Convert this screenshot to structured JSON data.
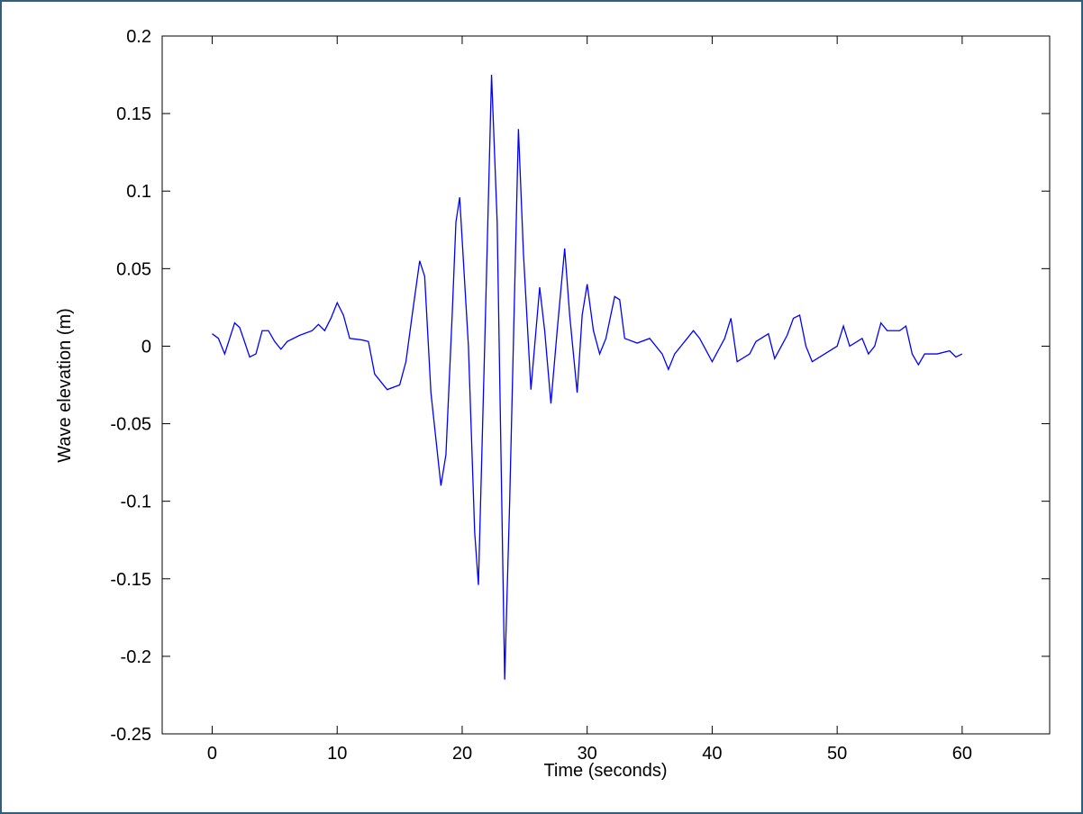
{
  "chart_data": {
    "type": "line",
    "xlabel": "Time (seconds)",
    "ylabel": "Wave elevation (m)",
    "xlim": [
      -4,
      67
    ],
    "ylim": [
      -0.25,
      0.2
    ],
    "xticks": [
      0,
      10,
      20,
      30,
      40,
      50,
      60
    ],
    "yticks": [
      -0.25,
      -0.2,
      -0.15,
      -0.1,
      -0.05,
      0,
      0.05,
      0.1,
      0.15,
      0.2
    ],
    "grid": false,
    "series": [
      {
        "color": "#0000ff",
        "x": [
          0,
          0.5,
          1,
          1.8,
          2.2,
          2.5,
          3,
          3.5,
          4,
          4.5,
          5,
          5.5,
          6,
          7,
          8,
          8.5,
          9,
          9.5,
          10,
          10.5,
          11,
          12,
          12.5,
          13,
          14,
          15,
          15.5,
          16,
          16.6,
          17,
          17.5,
          18.3,
          18.7,
          19.2,
          19.5,
          19.8,
          20.5,
          21,
          21.3,
          21.8,
          22.35,
          22.8,
          23.4,
          23.8,
          24.5,
          24.9,
          25.5,
          26.2,
          26.6,
          27.1,
          27.6,
          28.2,
          28.6,
          29.2,
          29.6,
          30,
          30.5,
          31,
          31.5,
          32.2,
          32.6,
          33,
          34,
          35,
          36,
          36.5,
          37,
          38,
          38.5,
          39,
          40,
          41,
          41.5,
          42,
          43,
          43.5,
          44.5,
          45,
          46,
          46.5,
          47,
          47.5,
          48,
          49,
          50,
          50.5,
          51,
          52,
          52.5,
          53,
          53.5,
          54,
          55,
          55.5,
          56,
          56.5,
          57,
          58,
          59,
          59.5,
          60
        ],
        "values": [
          0.008,
          0.005,
          -0.005,
          0.015,
          0.012,
          0.005,
          -0.007,
          -0.005,
          0.01,
          0.01,
          0.003,
          -0.002,
          0.003,
          0.007,
          0.01,
          0.014,
          0.01,
          0.018,
          0.028,
          0.02,
          0.005,
          0.004,
          0.003,
          -0.018,
          -0.028,
          -0.025,
          -0.01,
          0.02,
          0.055,
          0.045,
          -0.03,
          -0.09,
          -0.07,
          0.02,
          0.08,
          0.096,
          0.0,
          -0.12,
          -0.154,
          0.0,
          0.175,
          0.08,
          -0.215,
          -0.1,
          0.14,
          0.06,
          -0.028,
          0.038,
          0.01,
          -0.037,
          0.01,
          0.063,
          0.02,
          -0.03,
          0.02,
          0.04,
          0.01,
          -0.005,
          0.005,
          0.032,
          0.03,
          0.005,
          0.002,
          0.005,
          -0.005,
          -0.015,
          -0.005,
          0.005,
          0.01,
          0.005,
          -0.01,
          0.005,
          0.018,
          -0.01,
          -0.005,
          0.003,
          0.008,
          -0.008,
          0.007,
          0.018,
          0.02,
          0.0,
          -0.01,
          -0.005,
          0.0,
          0.013,
          0.0,
          0.005,
          -0.005,
          0.0,
          0.015,
          0.01,
          0.01,
          0.013,
          -0.005,
          -0.012,
          -0.005,
          -0.005,
          -0.003,
          -0.007,
          -0.005
        ]
      }
    ]
  }
}
